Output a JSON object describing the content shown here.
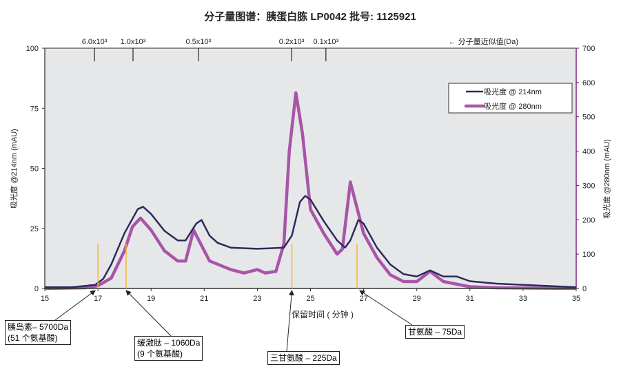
{
  "chart_data": {
    "type": "line",
    "title": "分子量图谱：胰蛋白胨 LP0042  批号: 1125921",
    "xlabel": "保留时间 ( 分钟 )",
    "ylabel_left": "吸光度 @214nm (mAU)",
    "ylabel_right": "吸光度 @280nm (mAU)",
    "xlim": [
      15,
      35
    ],
    "ylim_left": [
      0,
      100
    ],
    "ylim_right": [
      0,
      700
    ],
    "x_ticks": [
      15,
      17,
      19,
      21,
      23,
      25,
      27,
      29,
      31,
      33,
      35
    ],
    "y_ticks_left": [
      0,
      25,
      50,
      75,
      100
    ],
    "y_ticks_right": [
      0,
      100,
      200,
      300,
      400,
      500,
      600,
      700
    ],
    "legend_placement": "top-right",
    "colors": {
      "s214": "#2e2a5c",
      "s280": "#a855a8",
      "marker": "#f5b731",
      "plot_bg": "#e6e7e8"
    },
    "top_axis": {
      "label": "← 分子量近似值(Da)",
      "ticks": [
        {
          "label": "6.0x10³",
          "x": 16.87
        },
        {
          "label": "1.0x10³",
          "x": 18.32
        },
        {
          "label": "0.5x10³",
          "x": 20.78
        },
        {
          "label": "0.2x10³",
          "x": 24.29
        },
        {
          "label": "0.1x10³",
          "x": 25.58
        }
      ]
    },
    "series": [
      {
        "name": "吸光度 @ 214nm",
        "axis": "left",
        "x": [
          15,
          16,
          16.9,
          17.2,
          17.5,
          18,
          18.5,
          18.7,
          19,
          19.5,
          20,
          20.3,
          20.7,
          20.9,
          21.2,
          21.5,
          22,
          23,
          24,
          24.3,
          24.6,
          24.8,
          25,
          25.5,
          26,
          26.3,
          26.5,
          26.8,
          27,
          27.5,
          28,
          28.5,
          29,
          29.5,
          30,
          30.5,
          31,
          32,
          33,
          34,
          35
        ],
        "y": [
          0.5,
          0.5,
          1.5,
          4,
          10,
          23,
          33,
          34,
          31,
          24,
          20,
          20,
          27,
          28.5,
          22,
          19,
          17,
          16.5,
          17,
          22,
          36,
          38.5,
          37,
          28,
          20,
          17,
          20,
          28.5,
          27,
          17,
          10,
          6,
          5,
          7.5,
          5,
          5,
          3,
          2,
          1.5,
          1,
          0.5
        ]
      },
      {
        "name": "吸光度 @ 280nm",
        "axis": "right",
        "x": [
          15,
          16.5,
          17,
          17.5,
          18,
          18.3,
          18.6,
          19,
          19.5,
          20,
          20.3,
          20.6,
          20.8,
          21.2,
          22,
          22.5,
          23,
          23.3,
          23.7,
          24,
          24.2,
          24.45,
          24.7,
          25,
          25.5,
          26,
          26.2,
          26.5,
          26.7,
          27,
          27.5,
          28,
          28.5,
          29,
          29.5,
          30,
          31,
          32,
          35
        ],
        "y": [
          0,
          2,
          8,
          30,
          110,
          180,
          205,
          170,
          110,
          80,
          80,
          170,
          140,
          80,
          55,
          45,
          55,
          45,
          50,
          130,
          400,
          570,
          450,
          230,
          160,
          100,
          115,
          310,
          250,
          160,
          90,
          40,
          20,
          20,
          50,
          20,
          5,
          2,
          0
        ]
      }
    ],
    "markers": [
      17.0,
      18.06,
      24.3,
      26.75
    ],
    "marker_height": 18.6,
    "annotations": [
      {
        "lines": [
          "胰岛素– 5700Da",
          "(51 个氨基酸)"
        ],
        "x": 17.0
      },
      {
        "lines": [
          "缓激肽 – 1060Da",
          "(9 个氨基酸)"
        ],
        "x": 18.06
      },
      {
        "lines": [
          "三甘氨酸 – 225Da"
        ],
        "x": 24.3
      },
      {
        "lines": [
          "甘氨酸  – 75Da"
        ],
        "x": 26.75
      }
    ]
  }
}
